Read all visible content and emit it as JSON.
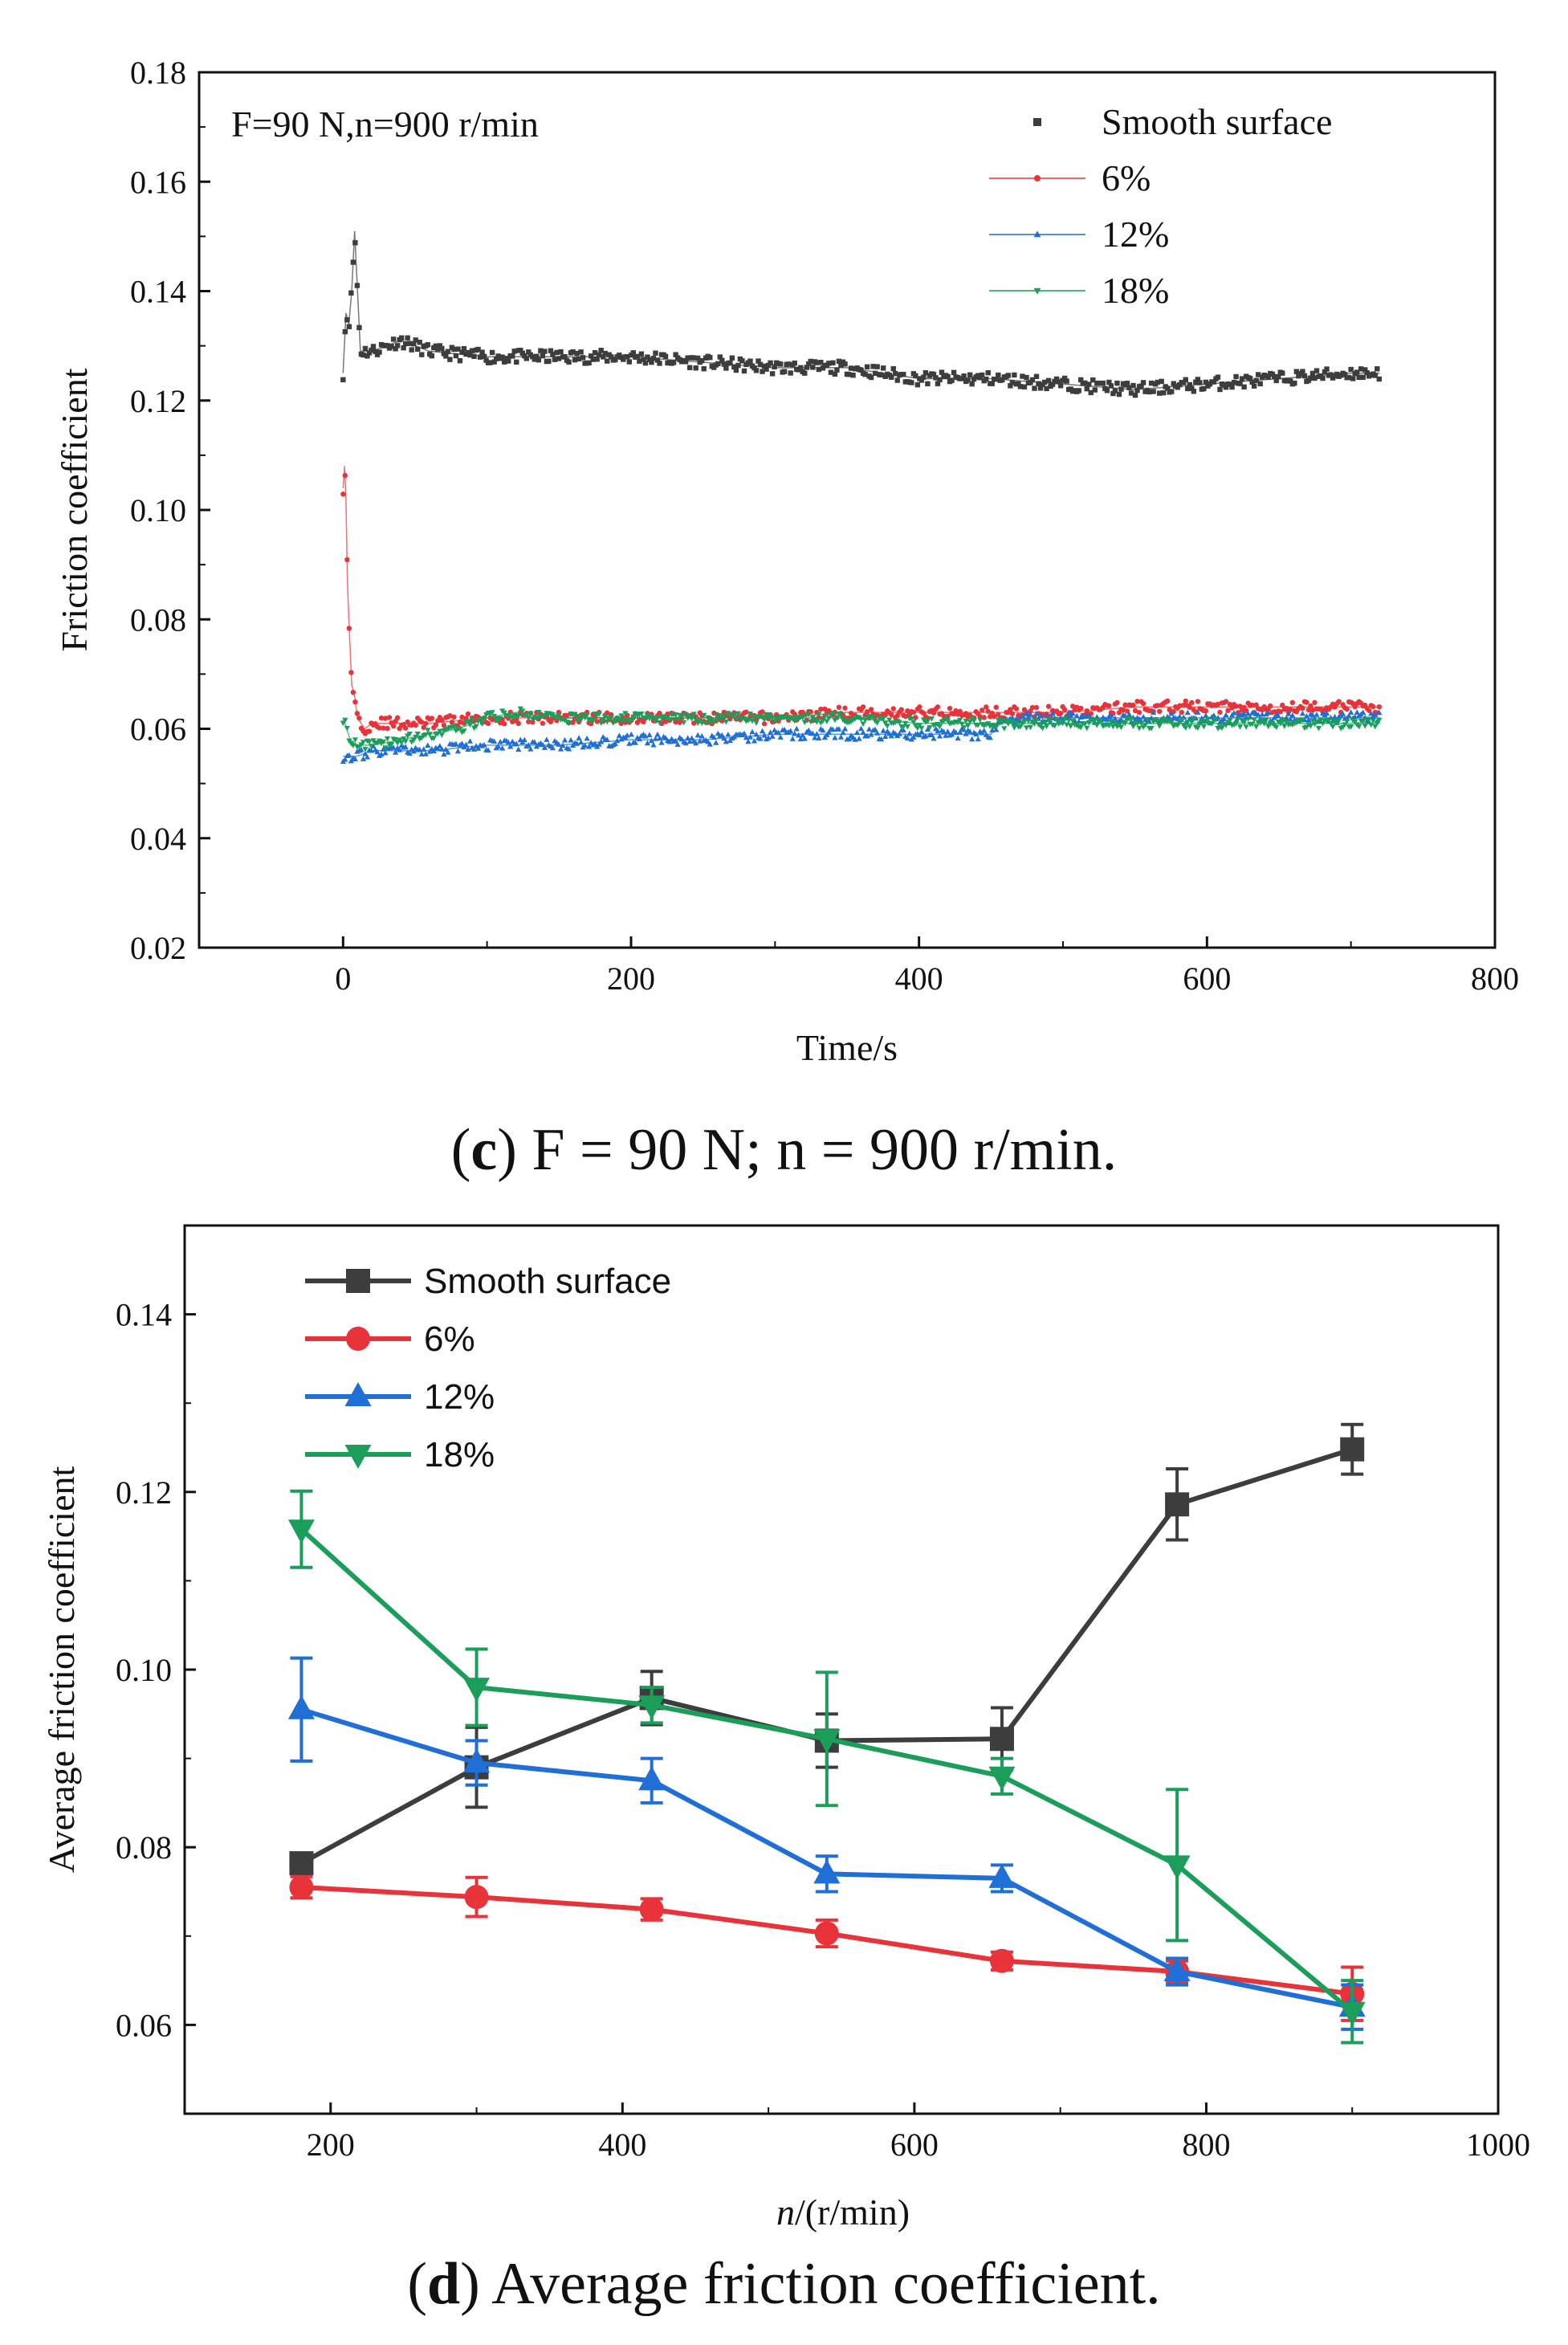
{
  "captions": {
    "c_letter": "c",
    "c_text": " F = 90 N; n = 900 r/min.",
    "d_letter": "d",
    "d_text": " Average friction coefficient."
  },
  "chart_data": [
    {
      "id": "c",
      "type": "scatter",
      "annotation": "F=90 N,n=900 r/min",
      "xlabel": "Time/s",
      "ylabel": "Friction coefficient",
      "xlim": [
        -100,
        800
      ],
      "ylim": [
        0.02,
        0.18
      ],
      "xticks": [
        0,
        200,
        400,
        600,
        800
      ],
      "yticks": [
        0.02,
        0.04,
        0.06,
        0.08,
        0.1,
        0.12,
        0.14,
        0.16,
        0.18
      ],
      "ytick_labels": [
        "0.02",
        "0.04",
        "0.06",
        "0.08",
        "0.10",
        "0.12",
        "0.14",
        "0.16",
        "0.18"
      ],
      "legend_position": "top-right",
      "series": [
        {
          "name": "Smooth surface",
          "color": "#3d3d3d",
          "marker": "square",
          "x": [
            0,
            2,
            4,
            6,
            8,
            12,
            20,
            40,
            60,
            100,
            150,
            200,
            250,
            300,
            350,
            400,
            450,
            500,
            550,
            600,
            650,
            700,
            720
          ],
          "y": [
            0.125,
            0.136,
            0.134,
            0.14,
            0.151,
            0.129,
            0.129,
            0.131,
            0.129,
            0.128,
            0.128,
            0.128,
            0.127,
            0.126,
            0.126,
            0.124,
            0.124,
            0.123,
            0.122,
            0.123,
            0.124,
            0.125,
            0.125
          ]
        },
        {
          "name": "6%",
          "color": "#e8333a",
          "marker": "circle",
          "x": [
            0,
            1,
            2,
            3,
            4,
            5,
            6,
            8,
            10,
            15,
            20,
            40,
            60,
            100,
            150,
            200,
            250,
            300,
            350,
            400,
            450,
            500,
            550,
            600,
            650,
            700,
            720
          ],
          "y": [
            0.104,
            0.108,
            0.102,
            0.087,
            0.08,
            0.074,
            0.068,
            0.066,
            0.062,
            0.06,
            0.061,
            0.061,
            0.061,
            0.062,
            0.062,
            0.062,
            0.062,
            0.062,
            0.063,
            0.063,
            0.063,
            0.063,
            0.064,
            0.064,
            0.064,
            0.064,
            0.064
          ]
        },
        {
          "name": "12%",
          "color": "#1f6fd6",
          "marker": "triangle-up",
          "x": [
            0,
            5,
            10,
            20,
            40,
            60,
            100,
            150,
            200,
            250,
            300,
            350,
            400,
            450,
            460,
            500,
            550,
            600,
            650,
            700,
            720
          ],
          "y": [
            0.055,
            0.055,
            0.055,
            0.056,
            0.056,
            0.056,
            0.057,
            0.057,
            0.058,
            0.058,
            0.059,
            0.059,
            0.059,
            0.059,
            0.062,
            0.062,
            0.062,
            0.062,
            0.062,
            0.062,
            0.062
          ]
        },
        {
          "name": "18%",
          "color": "#1a9e5a",
          "marker": "triangle-down",
          "x": [
            0,
            5,
            10,
            20,
            40,
            60,
            80,
            100,
            120,
            150,
            200,
            250,
            300,
            350,
            400,
            450,
            500,
            550,
            600,
            650,
            700,
            720
          ],
          "y": [
            0.062,
            0.058,
            0.057,
            0.057,
            0.058,
            0.059,
            0.06,
            0.062,
            0.063,
            0.062,
            0.062,
            0.062,
            0.062,
            0.062,
            0.061,
            0.061,
            0.061,
            0.061,
            0.061,
            0.061,
            0.061,
            0.061
          ]
        }
      ]
    },
    {
      "id": "d",
      "type": "line",
      "xlabel_italic": "n",
      "xlabel_rest": "/(r/min)",
      "ylabel": "Average friction coefficient",
      "xlim": [
        100,
        1000
      ],
      "ylim": [
        0.05,
        0.15
      ],
      "xticks": [
        200,
        400,
        600,
        800,
        1000
      ],
      "yticks": [
        0.06,
        0.08,
        0.1,
        0.12,
        0.14
      ],
      "ytick_labels": [
        "0.06",
        "0.08",
        "0.10",
        "0.12",
        "0.14"
      ],
      "legend_position": "top-left",
      "x": [
        180,
        300,
        420,
        540,
        660,
        780,
        900
      ],
      "series": [
        {
          "name": "Smooth surface",
          "color": "#3d3d3d",
          "marker": "square",
          "values": [
            0.0782,
            0.089,
            0.0968,
            0.092,
            0.0922,
            0.1186,
            0.1248
          ],
          "errors": [
            0.001,
            0.0045,
            0.003,
            0.003,
            0.0035,
            0.004,
            0.0028
          ]
        },
        {
          "name": "6%",
          "color": "#e8333a",
          "marker": "circle",
          "values": [
            0.0755,
            0.0744,
            0.073,
            0.0703,
            0.0672,
            0.066,
            0.0635
          ],
          "errors": [
            0.0012,
            0.0022,
            0.0012,
            0.0015,
            0.001,
            0.0012,
            0.003
          ]
        },
        {
          "name": "12%",
          "color": "#1f6fd6",
          "marker": "triangle-up",
          "values": [
            0.0955,
            0.0895,
            0.0875,
            0.077,
            0.0765,
            0.066,
            0.062
          ],
          "errors": [
            0.0058,
            0.0025,
            0.0025,
            0.002,
            0.0015,
            0.0015,
            0.0025
          ]
        },
        {
          "name": "18%",
          "color": "#1a9e5a",
          "marker": "triangle-down",
          "values": [
            0.1158,
            0.098,
            0.096,
            0.0922,
            0.088,
            0.078,
            0.0615
          ],
          "errors": [
            0.0043,
            0.0043,
            0.002,
            0.0075,
            0.002,
            0.0085,
            0.0035
          ]
        }
      ]
    }
  ]
}
